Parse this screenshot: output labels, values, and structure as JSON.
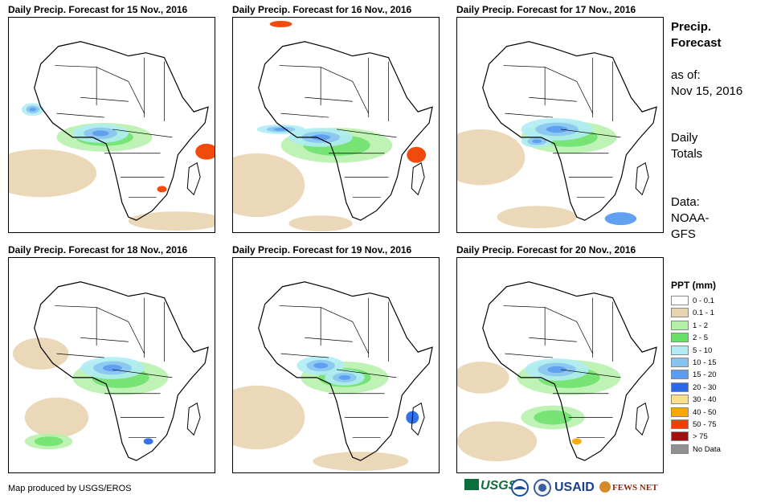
{
  "panels": [
    {
      "title": "Daily Precip. Forecast for 15 Nov., 2016"
    },
    {
      "title": "Daily Precip. Forecast for 16 Nov., 2016"
    },
    {
      "title": "Daily Precip. Forecast for 17 Nov., 2016"
    },
    {
      "title": "Daily Precip. Forecast for 18 Nov., 2016"
    },
    {
      "title": "Daily Precip. Forecast for 19 Nov., 2016"
    },
    {
      "title": "Daily Precip. Forecast for 20 Nov., 2016"
    }
  ],
  "sidebar": {
    "title_line1": "Precip.",
    "title_line2": "Forecast",
    "asof_label": "as of:",
    "asof_date": "Nov 15, 2016",
    "totals_line1": "Daily",
    "totals_line2": "Totals",
    "data_line1": "Data:",
    "data_line2": "NOAA-",
    "data_line3": "GFS"
  },
  "legend": {
    "title": "PPT (mm)",
    "items": [
      {
        "label": "0 - 0.1",
        "color": "#ffffff"
      },
      {
        "label": "0.1 - 1",
        "color": "#e8d4b0"
      },
      {
        "label": "1 - 2",
        "color": "#b4f0a8"
      },
      {
        "label": "2 - 5",
        "color": "#66e066"
      },
      {
        "label": "5 - 10",
        "color": "#b0ecf4"
      },
      {
        "label": "10 - 15",
        "color": "#88c4f0"
      },
      {
        "label": "15 - 20",
        "color": "#5a9cf0"
      },
      {
        "label": "20 - 30",
        "color": "#2a6ae8"
      },
      {
        "label": "30 - 40",
        "color": "#f8e08a"
      },
      {
        "label": "40 - 50",
        "color": "#f8a800"
      },
      {
        "label": "50 - 75",
        "color": "#f04000"
      },
      {
        "label": "> 75",
        "color": "#a01010"
      },
      {
        "label": "No Data",
        "color": "#909090"
      }
    ]
  },
  "footer": {
    "credit": "Map produced by USGS/EROS"
  },
  "logos": {
    "usgs": "USGS",
    "usaid": "USAID",
    "fewsnet": "FEWS NET"
  }
}
